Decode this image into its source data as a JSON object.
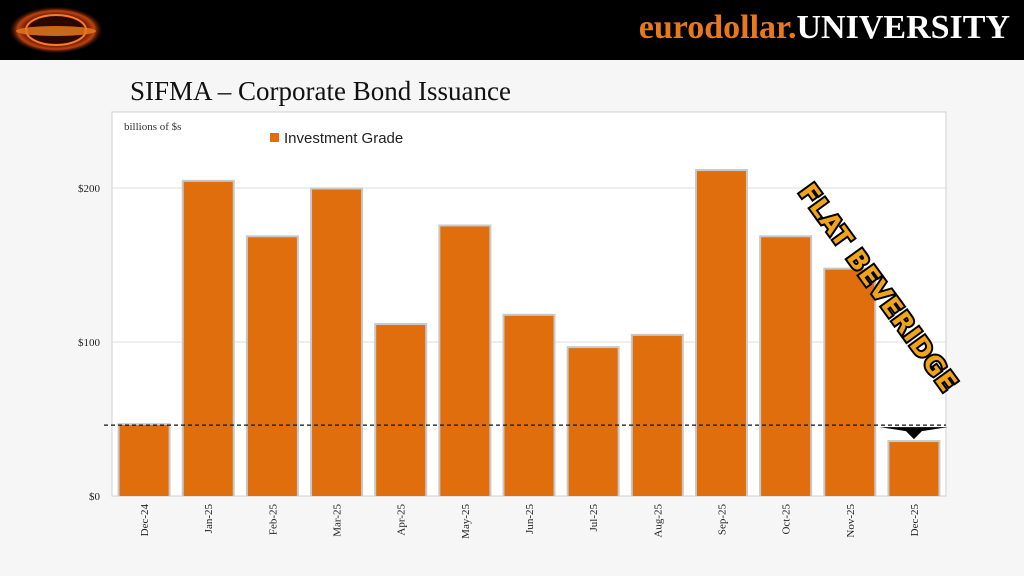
{
  "brand": {
    "part1": "eurodollar.",
    "part2": "UNIVERSITY",
    "accent_color": "#e8781e"
  },
  "logo": {
    "icon": "eclipse-logo-icon"
  },
  "title": "SIFMA – Corporate Bond Issuance",
  "chart_data": {
    "type": "bar",
    "categories": [
      "Dec-24",
      "Jan-25",
      "Feb-25",
      "Mar-25",
      "Apr-25",
      "May-25",
      "Jun-25",
      "Jul-25",
      "Aug-25",
      "Sep-25",
      "Oct-25",
      "Nov-25",
      "Dec-25"
    ],
    "series": [
      {
        "name": "Investment Grade",
        "color": "#e06e0c",
        "values": [
          46,
          204,
          168,
          199,
          111,
          175,
          117,
          96,
          104,
          211,
          168,
          147,
          35
        ]
      }
    ],
    "unit_label": "billions of $s",
    "yticks": [
      "$0",
      "$100",
      "$200"
    ],
    "ytick_values": [
      0,
      100,
      200
    ],
    "ylim": [
      0,
      250
    ],
    "reference_line": 46,
    "grid": true,
    "legend_position": "top-left",
    "annotation": "FLAT BEVERIDGE",
    "arrow_color": "#000000"
  }
}
